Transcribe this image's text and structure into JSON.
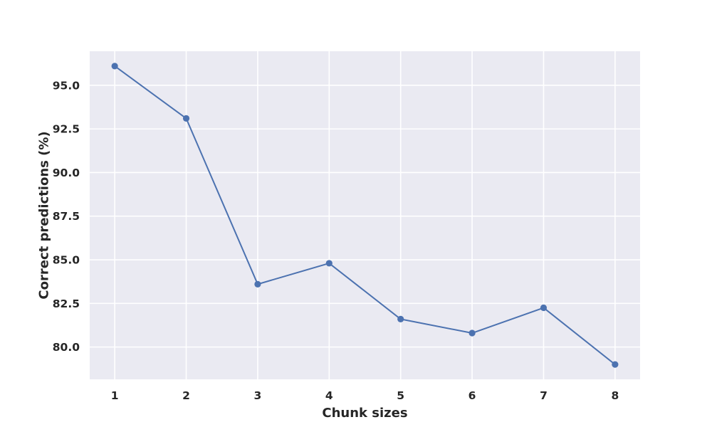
{
  "chart_data": {
    "type": "line",
    "title": "",
    "xlabel": "Chunk sizes",
    "ylabel": "Correct predictions (%)",
    "x": [
      1,
      2,
      3,
      4,
      5,
      6,
      7,
      8
    ],
    "series": [
      {
        "values": [
          96.1,
          93.1,
          83.6,
          84.8,
          81.6,
          80.8,
          82.25,
          79.0
        ],
        "color": "#4c72b0",
        "marker": "circle"
      }
    ],
    "xlim": [
      0.65,
      8.35
    ],
    "ylim": [
      78.15,
      96.95
    ],
    "xticks": [
      "1",
      "2",
      "3",
      "4",
      "5",
      "6",
      "7",
      "8"
    ],
    "yticks": [
      "80.0",
      "82.5",
      "85.0",
      "87.5",
      "90.0",
      "92.5",
      "95.0"
    ],
    "ytick_values": [
      80.0,
      82.5,
      85.0,
      87.5,
      90.0,
      92.5,
      95.0
    ],
    "grid": true,
    "plot_background": "#eaeaf2",
    "grid_color": "#ffffff"
  }
}
